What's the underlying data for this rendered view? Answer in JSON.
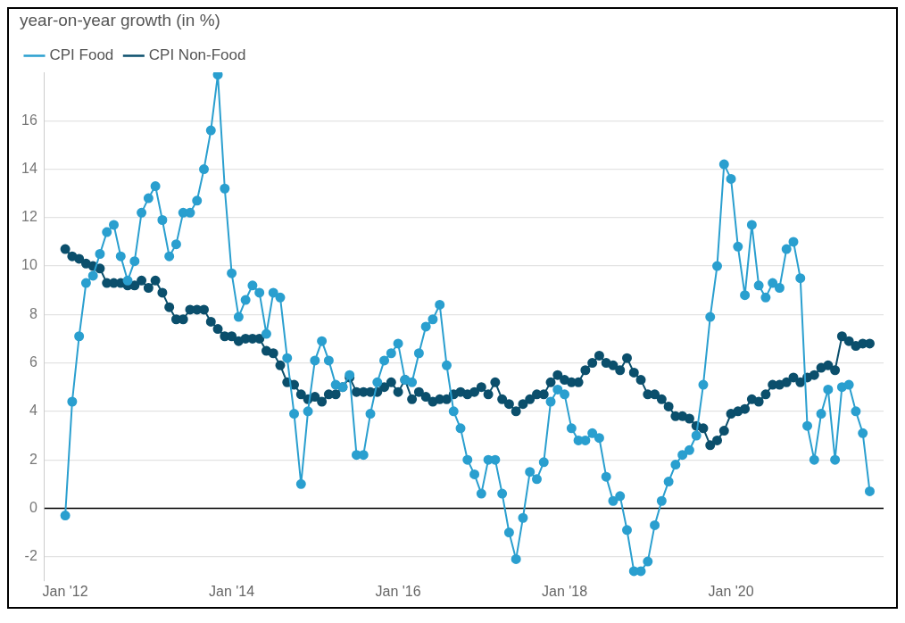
{
  "chart_data": {
    "type": "line",
    "ylabel": "year-on-year growth (in %)",
    "x": [
      "2012-01",
      "2012-02",
      "2012-03",
      "2012-04",
      "2012-05",
      "2012-06",
      "2012-07",
      "2012-08",
      "2012-09",
      "2012-10",
      "2012-11",
      "2012-12",
      "2013-01",
      "2013-02",
      "2013-03",
      "2013-04",
      "2013-05",
      "2013-06",
      "2013-07",
      "2013-08",
      "2013-09",
      "2013-10",
      "2013-11",
      "2013-12",
      "2014-01",
      "2014-02",
      "2014-03",
      "2014-04",
      "2014-05",
      "2014-06",
      "2014-07",
      "2014-08",
      "2014-09",
      "2014-10",
      "2014-11",
      "2014-12",
      "2015-01",
      "2015-02",
      "2015-03",
      "2015-04",
      "2015-05",
      "2015-06",
      "2015-07",
      "2015-08",
      "2015-09",
      "2015-10",
      "2015-11",
      "2015-12",
      "2016-01",
      "2016-02",
      "2016-03",
      "2016-04",
      "2016-05",
      "2016-06",
      "2016-07",
      "2016-08",
      "2016-09",
      "2016-10",
      "2016-11",
      "2016-12",
      "2017-01",
      "2017-02",
      "2017-03",
      "2017-04",
      "2017-05",
      "2017-06",
      "2017-07",
      "2017-08",
      "2017-09",
      "2017-10",
      "2017-11",
      "2017-12",
      "2018-01",
      "2018-02",
      "2018-03",
      "2018-04",
      "2018-05",
      "2018-06",
      "2018-07",
      "2018-08",
      "2018-09",
      "2018-10",
      "2018-11",
      "2018-12",
      "2019-01",
      "2019-02",
      "2019-03",
      "2019-04",
      "2019-05",
      "2019-06",
      "2019-07",
      "2019-08",
      "2019-09",
      "2019-10",
      "2019-11",
      "2019-12",
      "2020-01",
      "2020-02",
      "2020-03",
      "2020-04",
      "2020-05",
      "2020-06",
      "2020-07",
      "2020-08",
      "2020-09",
      "2020-10",
      "2020-11",
      "2020-12",
      "2021-01",
      "2021-02",
      "2021-03",
      "2021-04",
      "2021-05",
      "2021-06",
      "2021-07",
      "2021-08",
      "2021-09"
    ],
    "series": [
      {
        "name": "CPI Food",
        "color": "#2a9fcf",
        "values": [
          -0.3,
          4.4,
          7.1,
          9.3,
          9.6,
          10.5,
          11.4,
          11.7,
          10.4,
          9.4,
          10.2,
          12.2,
          12.8,
          13.3,
          11.9,
          10.4,
          10.9,
          12.2,
          12.2,
          12.7,
          14.0,
          15.6,
          17.9,
          13.2,
          9.7,
          7.9,
          8.6,
          9.2,
          8.9,
          7.2,
          8.9,
          8.7,
          6.2,
          3.9,
          1.0,
          4.0,
          6.1,
          6.9,
          6.1,
          5.1,
          5.0,
          5.5,
          2.2,
          2.2,
          3.9,
          5.2,
          6.1,
          6.4,
          6.8,
          5.3,
          5.2,
          6.4,
          7.5,
          7.8,
          8.4,
          5.9,
          4.0,
          3.3,
          2.0,
          1.4,
          0.6,
          2.0,
          2.0,
          0.6,
          -1.0,
          -2.1,
          -0.4,
          1.5,
          1.2,
          1.9,
          4.4,
          4.9,
          4.7,
          3.3,
          2.8,
          2.8,
          3.1,
          2.9,
          1.3,
          0.3,
          0.5,
          -0.9,
          -2.6,
          -2.6,
          -2.2,
          -0.7,
          0.3,
          1.1,
          1.8,
          2.2,
          2.4,
          3.0,
          5.1,
          7.9,
          10.0,
          14.2,
          13.6,
          10.8,
          8.8,
          11.7,
          9.2,
          8.7,
          9.3,
          9.1,
          10.7,
          11.0,
          9.5,
          3.4,
          2.0,
          3.9,
          4.9,
          2.0,
          5.0,
          5.1,
          4.0,
          3.1,
          0.7
        ]
      },
      {
        "name": "CPI Non-Food",
        "color": "#0b4f6c",
        "values": [
          10.7,
          10.4,
          10.3,
          10.1,
          10.0,
          9.9,
          9.3,
          9.3,
          9.3,
          9.2,
          9.2,
          9.4,
          9.1,
          9.4,
          8.9,
          8.3,
          7.8,
          7.8,
          8.2,
          8.2,
          8.2,
          7.7,
          7.4,
          7.1,
          7.1,
          6.9,
          7.0,
          7.0,
          7.0,
          6.5,
          6.4,
          5.9,
          5.2,
          5.1,
          4.7,
          4.5,
          4.6,
          4.4,
          4.7,
          4.7,
          5.0,
          5.4,
          4.8,
          4.8,
          4.8,
          4.8,
          5.0,
          5.2,
          4.8,
          5.3,
          4.5,
          4.8,
          4.6,
          4.4,
          4.5,
          4.5,
          4.7,
          4.8,
          4.7,
          4.8,
          5.0,
          4.7,
          5.2,
          4.5,
          4.3,
          4.0,
          4.3,
          4.5,
          4.7,
          4.7,
          5.2,
          5.5,
          5.3,
          5.2,
          5.2,
          5.7,
          6.0,
          6.3,
          6.0,
          5.9,
          5.7,
          6.2,
          5.6,
          5.3,
          4.7,
          4.7,
          4.5,
          4.2,
          3.8,
          3.8,
          3.7,
          3.4,
          3.3,
          2.6,
          2.8,
          3.2,
          3.9,
          4.0,
          4.1,
          4.5,
          4.4,
          4.7,
          5.1,
          5.1,
          5.2,
          5.4,
          5.2,
          5.4,
          5.5,
          5.8,
          5.9,
          5.7,
          7.1,
          6.9,
          6.7,
          6.8,
          6.8
        ]
      }
    ],
    "xlim": [
      "2011-10",
      "2021-11"
    ],
    "xticks": [
      {
        "value": "2012-01",
        "label": "Jan '12"
      },
      {
        "value": "2014-01",
        "label": "Jan '14"
      },
      {
        "value": "2016-01",
        "label": "Jan '16"
      },
      {
        "value": "2018-01",
        "label": "Jan '18"
      },
      {
        "value": "2020-01",
        "label": "Jan '20"
      }
    ],
    "ylim": [
      -3,
      18
    ],
    "yticks": [
      -2,
      0,
      2,
      4,
      6,
      8,
      10,
      12,
      14,
      16
    ],
    "ref_lines": [
      {
        "axis": "y",
        "value": 0,
        "color": "#000000"
      }
    ],
    "grid": "y",
    "legend": "top left",
    "marker": "circle",
    "line_style": "solid"
  }
}
